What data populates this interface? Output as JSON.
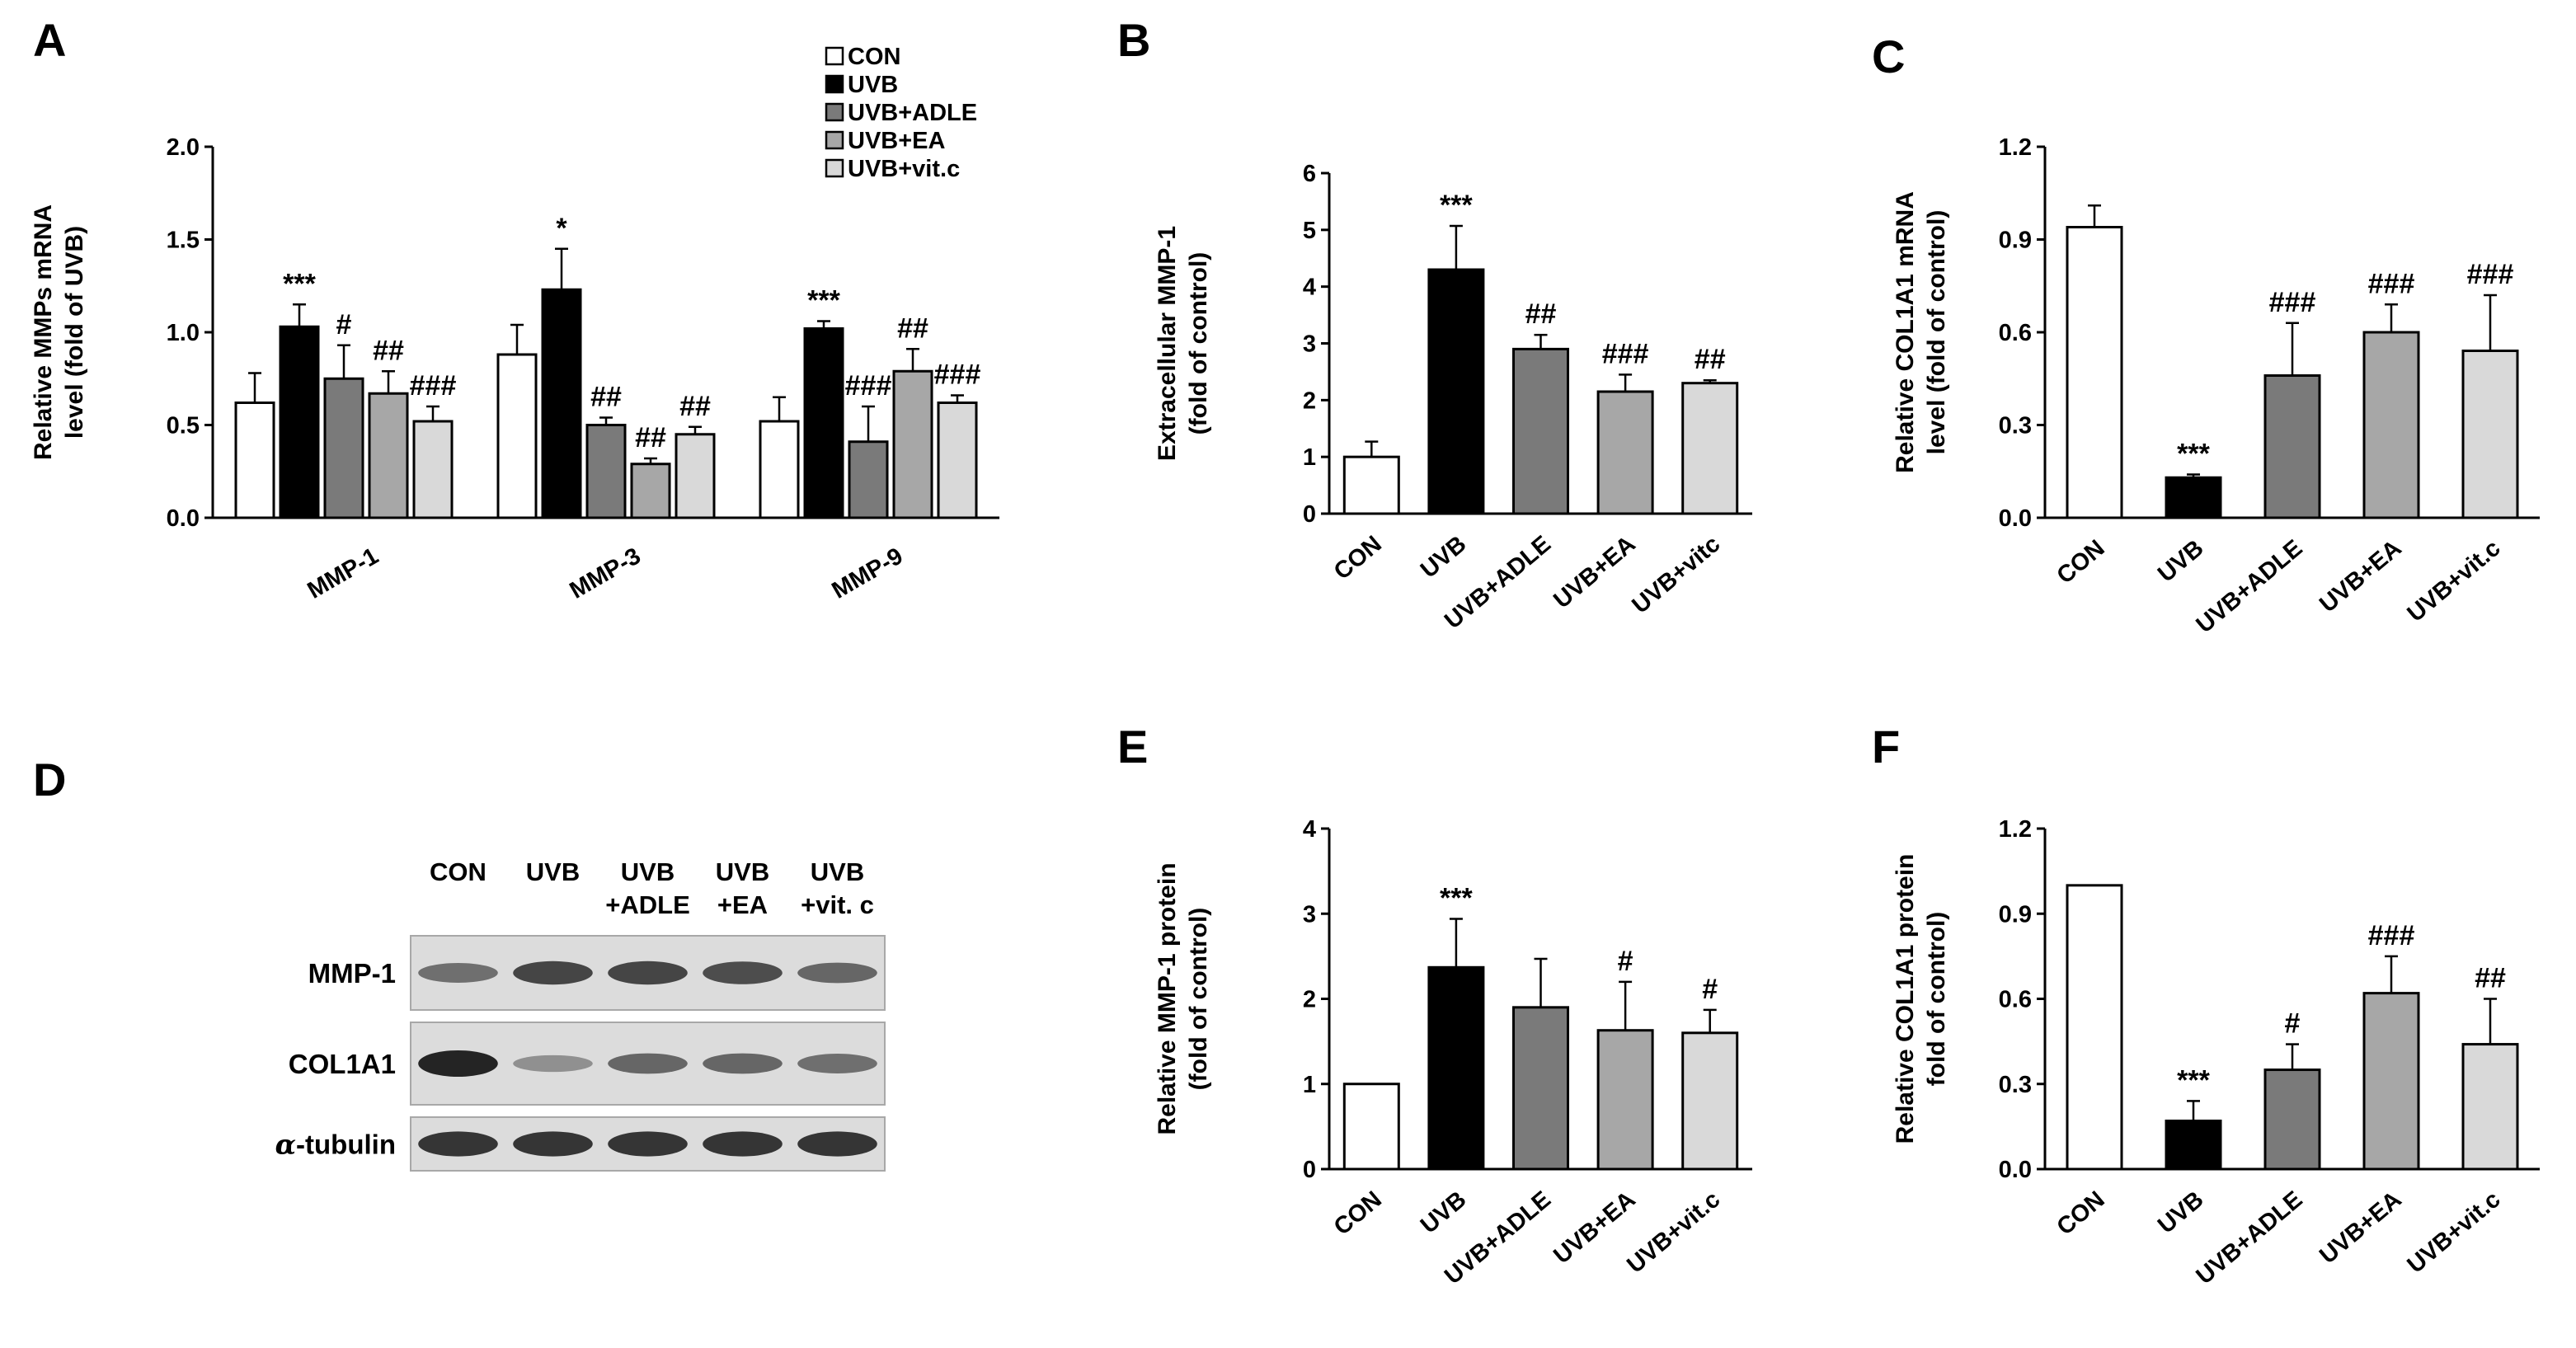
{
  "colors": {
    "CON": "#ffffff",
    "UVB": "#000000",
    "UVB+ADLE": "#7a7a7a",
    "UVB+EA": "#a7a7a7",
    "UVB+vit.c": "#d9d9d9",
    "axis": "#000000"
  },
  "legend": [
    "CON",
    "UVB",
    "UVB+ADLE",
    "UVB+EA",
    "UVB+vit.c"
  ],
  "chart_data": [
    {
      "panel": "A",
      "type": "bar",
      "ylabel_lines": [
        "Relative MMPs mRNA",
        "level (fold of UVB)"
      ],
      "ylim": [
        0,
        2.0
      ],
      "yticks": [
        "0.0",
        "0.5",
        "1.0",
        "1.5",
        "2.0"
      ],
      "categories": [
        "MMP-1",
        "MMP-3",
        "MMP-9"
      ],
      "series": [
        {
          "name": "CON",
          "values": [
            0.62,
            0.88,
            0.52
          ],
          "errors": [
            0.16,
            0.16,
            0.13
          ],
          "sig": [
            "",
            "",
            ""
          ]
        },
        {
          "name": "UVB",
          "values": [
            1.03,
            1.23,
            1.02
          ],
          "errors": [
            0.12,
            0.22,
            0.04
          ],
          "sig": [
            "***",
            "*",
            "***"
          ]
        },
        {
          "name": "UVB+ADLE",
          "values": [
            0.75,
            0.5,
            0.41
          ],
          "errors": [
            0.18,
            0.04,
            0.19
          ],
          "sig": [
            "#",
            "##",
            "###"
          ]
        },
        {
          "name": "UVB+EA",
          "values": [
            0.67,
            0.29,
            0.79
          ],
          "errors": [
            0.12,
            0.03,
            0.12
          ],
          "sig": [
            "##",
            "##",
            "##"
          ]
        },
        {
          "name": "UVB+vit.c",
          "values": [
            0.52,
            0.45,
            0.62
          ],
          "errors": [
            0.08,
            0.04,
            0.04
          ],
          "sig": [
            "###",
            "##",
            "###"
          ]
        }
      ]
    },
    {
      "panel": "B",
      "type": "bar",
      "ylabel_lines": [
        "Extracellular MMP-1",
        "(fold of control)"
      ],
      "ylim": [
        0,
        6
      ],
      "yticks": [
        "0",
        "1",
        "2",
        "3",
        "4",
        "5",
        "6"
      ],
      "categories": [
        "CON",
        "UVB",
        "UVB+ADLE",
        "UVB+EA",
        "UVB+vitc"
      ],
      "values": [
        1.0,
        4.3,
        2.9,
        2.15,
        2.3
      ],
      "errors": [
        0.27,
        0.77,
        0.25,
        0.3,
        0.05
      ],
      "sig": [
        "",
        "***",
        "##",
        "###",
        "##"
      ]
    },
    {
      "panel": "C",
      "type": "bar",
      "ylabel_lines": [
        "Relative COL1A1 mRNA",
        "level (fold of control)"
      ],
      "ylim": [
        0,
        1.2
      ],
      "yticks": [
        "0.0",
        "0.3",
        "0.6",
        "0.9",
        "1.2"
      ],
      "categories": [
        "CON",
        "UVB",
        "UVB+ADLE",
        "UVB+EA",
        "UVB+vit.c"
      ],
      "values": [
        0.94,
        0.13,
        0.46,
        0.6,
        0.54
      ],
      "errors": [
        0.07,
        0.01,
        0.17,
        0.09,
        0.18
      ],
      "sig": [
        "",
        "***",
        "###",
        "###",
        "###"
      ]
    },
    {
      "panel": "E",
      "type": "bar",
      "ylabel_lines": [
        "Relative MMP-1 protein",
        "(fold of control)"
      ],
      "ylim": [
        0,
        4
      ],
      "yticks": [
        "0",
        "1",
        "2",
        "3",
        "4"
      ],
      "categories": [
        "CON",
        "UVB",
        "UVB+ADLE",
        "UVB+EA",
        "UVB+vit.c"
      ],
      "values": [
        1.0,
        2.37,
        1.9,
        1.63,
        1.6
      ],
      "errors": [
        0.0,
        0.57,
        0.57,
        0.57,
        0.27
      ],
      "sig": [
        "",
        "***",
        "",
        "#",
        "#"
      ]
    },
    {
      "panel": "F",
      "type": "bar",
      "ylabel_lines": [
        "Relative COL1A1 protein",
        "fold of control)"
      ],
      "ylim": [
        0,
        1.2
      ],
      "yticks": [
        "0.0",
        "0.3",
        "0.6",
        "0.9",
        "1.2"
      ],
      "categories": [
        "CON",
        "UVB",
        "UVB+ADLE",
        "UVB+EA",
        "UVB+vit.c"
      ],
      "values": [
        1.0,
        0.17,
        0.35,
        0.62,
        0.44
      ],
      "errors": [
        0.0,
        0.07,
        0.09,
        0.13,
        0.16
      ],
      "sig": [
        "",
        "***",
        "#",
        "###",
        "##"
      ]
    }
  ],
  "blot": {
    "panel": "D",
    "lanes": [
      {
        "line1": "CON",
        "line2": ""
      },
      {
        "line1": "UVB",
        "line2": ""
      },
      {
        "line1": "UVB",
        "line2": "+ADLE"
      },
      {
        "line1": "UVB",
        "line2": "+EA"
      },
      {
        "line1": "UVB",
        "line2": "+vit. c"
      }
    ],
    "rows": [
      {
        "label": "MMP-1",
        "intensity": [
          0.55,
          0.8,
          0.8,
          0.75,
          0.6
        ]
      },
      {
        "label": "COL1A1",
        "intensity": [
          1.0,
          0.35,
          0.6,
          0.6,
          0.55
        ]
      },
      {
        "label": "-tubulin",
        "prefix": "α",
        "intensity": [
          0.9,
          0.9,
          0.9,
          0.9,
          0.9
        ]
      }
    ]
  }
}
